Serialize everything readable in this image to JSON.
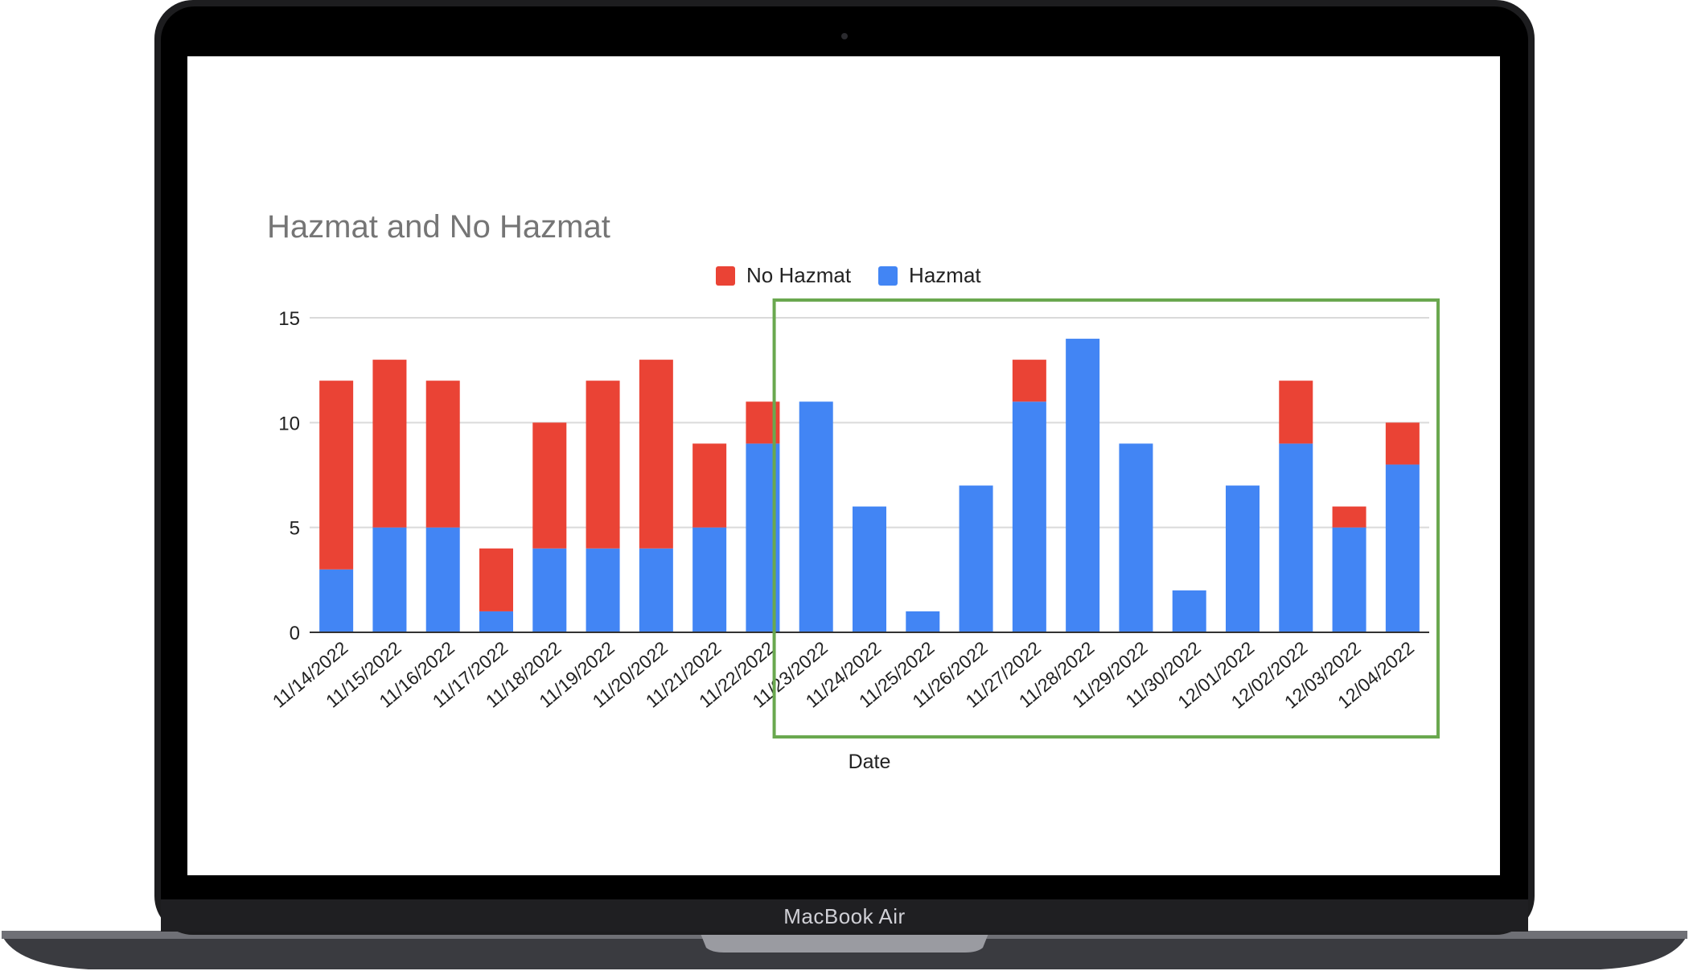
{
  "device": {
    "label": "MacBook Air"
  },
  "colors": {
    "no_hazmat": "#EA4335",
    "hazmat": "#4285F4",
    "highlight_box": "#6AA84F",
    "gridline": "#DADADA"
  },
  "chart_data": {
    "type": "bar",
    "stacked": true,
    "title": "Hazmat and No Hazmat",
    "xlabel": "Date",
    "ylabel": "",
    "ylim": [
      0,
      15
    ],
    "yticks": [
      0,
      5,
      10,
      15
    ],
    "grid": true,
    "legend_position": "top-center",
    "categories": [
      "11/14/2022",
      "11/15/2022",
      "11/16/2022",
      "11/17/2022",
      "11/18/2022",
      "11/19/2022",
      "11/20/2022",
      "11/21/2022",
      "11/22/2022",
      "11/23/2022",
      "11/24/2022",
      "11/25/2022",
      "11/26/2022",
      "11/27/2022",
      "11/28/2022",
      "11/29/2022",
      "11/30/2022",
      "12/01/2022",
      "12/02/2022",
      "12/03/2022",
      "12/04/2022"
    ],
    "series": [
      {
        "name": "Hazmat",
        "color": "#4285F4",
        "values": [
          3,
          5,
          5,
          1,
          4,
          4,
          4,
          5,
          9,
          11,
          6,
          1,
          7,
          11,
          14,
          9,
          2,
          7,
          9,
          5,
          8
        ]
      },
      {
        "name": "No Hazmat",
        "color": "#EA4335",
        "values": [
          9,
          8,
          7,
          3,
          6,
          8,
          9,
          4,
          2,
          0,
          0,
          0,
          0,
          2,
          0,
          0,
          0,
          0,
          3,
          1,
          2
        ]
      }
    ],
    "legend": [
      "No Hazmat",
      "Hazmat"
    ],
    "highlight_range": [
      "11/23/2022",
      "12/04/2022"
    ]
  }
}
